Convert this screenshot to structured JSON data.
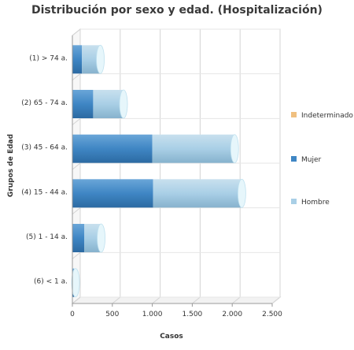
{
  "chart_data": {
    "type": "bar",
    "orientation": "horizontal",
    "stacked": true,
    "title": "Distribución por sexo y edad. (Hospitalización)",
    "xlabel": "Casos",
    "ylabel": "Grupos de Edad",
    "xlim": [
      0,
      2500
    ],
    "xticks": [
      "0",
      "500",
      "1.000",
      "1.500",
      "2.000",
      "2.500"
    ],
    "grid": true,
    "legend_position": "right",
    "categories": [
      "(1) > 74 a.",
      "(2) 65 - 74 a.",
      "(3) 45 - 64 a.",
      "(4) 15 - 44 a.",
      "(5) 1 - 14 a.",
      "(6) < 1 a."
    ],
    "series": [
      {
        "name": "Indeterminado",
        "color": "#f0c080",
        "values": [
          0,
          0,
          0,
          0,
          0,
          0
        ]
      },
      {
        "name": "Mujer",
        "color": "#3f86c4",
        "values": [
          120,
          260,
          1000,
          1010,
          150,
          20
        ]
      },
      {
        "name": "Hombre",
        "color": "#a9cfe6",
        "values": [
          230,
          380,
          1030,
          1110,
          210,
          20
        ]
      }
    ]
  }
}
